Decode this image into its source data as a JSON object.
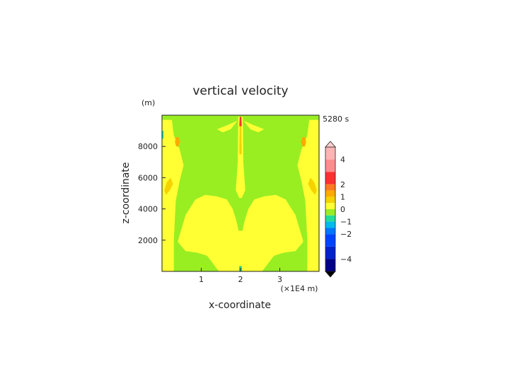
{
  "chart_data": {
    "type": "heatmap",
    "title": "vertical velocity",
    "time_label": "5280 s",
    "xlabel": "x-coordinate",
    "ylabel": "z-coordinate",
    "x_unit": "(×1E4 m)",
    "y_unit": "(m)",
    "xlim": [
      0,
      4
    ],
    "ylim": [
      0,
      10000
    ],
    "x_ticks": [
      1,
      2,
      3
    ],
    "x_tick_labels": [
      "1",
      "2",
      "3"
    ],
    "y_ticks": [
      2000,
      4000,
      6000,
      8000
    ],
    "y_tick_labels": [
      "2000",
      "4000",
      "6000",
      "8000"
    ],
    "colorbar": {
      "min": -5,
      "max": 5,
      "tick_values": [
        4,
        2,
        1,
        0,
        -1,
        -2,
        -4
      ],
      "tick_labels": [
        "4",
        "2",
        "1",
        "0",
        "−1",
        "−2",
        "−4"
      ],
      "bands": [
        {
          "from": 4,
          "to": 5,
          "color": "#ffb4b4"
        },
        {
          "from": 3,
          "to": 4,
          "color": "#ff8c8c"
        },
        {
          "from": 2,
          "to": 3,
          "color": "#ff3030"
        },
        {
          "from": 1.5,
          "to": 2,
          "color": "#ff7a1e"
        },
        {
          "from": 1,
          "to": 1.5,
          "color": "#ffaa00"
        },
        {
          "from": 0.5,
          "to": 1,
          "color": "#f5d200"
        },
        {
          "from": 0,
          "to": 0.5,
          "color": "#ffff33"
        },
        {
          "from": -0.5,
          "to": 0,
          "color": "#99ee22"
        },
        {
          "from": -1,
          "to": -0.5,
          "color": "#22dd99"
        },
        {
          "from": -1.5,
          "to": -1,
          "color": "#00bbee"
        },
        {
          "from": -2,
          "to": -1.5,
          "color": "#0077ff"
        },
        {
          "from": -3,
          "to": -2,
          "color": "#0044ff"
        },
        {
          "from": -4,
          "to": -3,
          "color": "#0022cc"
        },
        {
          "from": -5,
          "to": -4,
          "color": "#000088"
        }
      ],
      "over_color": "#ffd0d0",
      "under_color": "#000000"
    },
    "background_color": "#99ee22",
    "regions": [
      {
        "level": "0 to 0.5",
        "color": "#ffff33",
        "points": [
          [
            0.0,
            0
          ],
          [
            0.3,
            0
          ],
          [
            0.3,
            2000
          ],
          [
            0.35,
            4500
          ],
          [
            0.45,
            5800
          ],
          [
            0.55,
            6800
          ],
          [
            0.45,
            7800
          ],
          [
            0.3,
            8700
          ],
          [
            0.25,
            9700
          ],
          [
            0.0,
            9700
          ]
        ]
      },
      {
        "level": "0 to 0.5",
        "color": "#ffff33",
        "points": [
          [
            4.0,
            0
          ],
          [
            3.7,
            0
          ],
          [
            3.7,
            2000
          ],
          [
            3.65,
            4500
          ],
          [
            3.55,
            5800
          ],
          [
            3.45,
            6800
          ],
          [
            3.55,
            7800
          ],
          [
            3.7,
            8700
          ],
          [
            3.75,
            9700
          ],
          [
            4.0,
            9700
          ]
        ]
      },
      {
        "level": "0 to 0.5",
        "color": "#ffff33",
        "points": [
          [
            0.4,
            1900
          ],
          [
            0.6,
            3600
          ],
          [
            0.85,
            4600
          ],
          [
            1.1,
            4900
          ],
          [
            1.4,
            4800
          ],
          [
            1.65,
            4600
          ],
          [
            1.8,
            4000
          ],
          [
            1.9,
            3200
          ],
          [
            1.95,
            2600
          ],
          [
            2.05,
            2600
          ],
          [
            2.1,
            3200
          ],
          [
            2.2,
            4000
          ],
          [
            2.35,
            4600
          ],
          [
            2.6,
            4800
          ],
          [
            2.9,
            4900
          ],
          [
            3.15,
            4600
          ],
          [
            3.4,
            3600
          ],
          [
            3.6,
            1900
          ],
          [
            3.4,
            1300
          ],
          [
            3.1,
            1200
          ],
          [
            2.85,
            1000
          ],
          [
            2.55,
            0
          ],
          [
            1.45,
            0
          ],
          [
            1.15,
            1000
          ],
          [
            0.9,
            1200
          ],
          [
            0.6,
            1300
          ]
        ]
      },
      {
        "level": "0 to 0.5",
        "color": "#ffff33",
        "points": [
          [
            1.88,
            5200
          ],
          [
            1.93,
            7000
          ],
          [
            1.94,
            9900
          ],
          [
            2.06,
            9900
          ],
          [
            2.07,
            7000
          ],
          [
            2.12,
            5200
          ],
          [
            2.03,
            4700
          ],
          [
            1.97,
            4700
          ]
        ]
      },
      {
        "level": "0 to 0.5",
        "color": "#ffff33",
        "points": [
          [
            1.4,
            9100
          ],
          [
            1.7,
            9400
          ],
          [
            1.92,
            9650
          ],
          [
            1.75,
            9100
          ],
          [
            1.55,
            8900
          ]
        ]
      },
      {
        "level": "0 to 0.5",
        "color": "#ffff33",
        "points": [
          [
            2.6,
            9100
          ],
          [
            2.3,
            9400
          ],
          [
            2.08,
            9650
          ],
          [
            2.25,
            9100
          ],
          [
            2.45,
            8900
          ]
        ]
      },
      {
        "level": "0.5 to 1",
        "color": "#f5d200",
        "points": [
          [
            1.97,
            7500
          ],
          [
            1.98,
            9500
          ],
          [
            2.02,
            9500
          ],
          [
            2.03,
            7500
          ]
        ]
      },
      {
        "level": "2 to 3",
        "color": "#ff3030",
        "points": [
          [
            1.97,
            9300
          ],
          [
            1.98,
            9900
          ],
          [
            2.02,
            9900
          ],
          [
            2.03,
            9300
          ]
        ]
      },
      {
        "level": "1 to 1.5",
        "color": "#ffaa00",
        "points": [
          [
            0.36,
            8000
          ],
          [
            0.42,
            8000
          ],
          [
            0.46,
            8300
          ],
          [
            0.42,
            8600
          ],
          [
            0.36,
            8600
          ],
          [
            0.33,
            8300
          ]
        ]
      },
      {
        "level": "1 to 1.5",
        "color": "#ffaa00",
        "points": [
          [
            3.58,
            8000
          ],
          [
            3.64,
            8000
          ],
          [
            3.67,
            8300
          ],
          [
            3.64,
            8600
          ],
          [
            3.58,
            8600
          ],
          [
            3.54,
            8300
          ]
        ]
      },
      {
        "level": "0.5 to 1",
        "color": "#f5d200",
        "points": [
          [
            0.1,
            4900
          ],
          [
            0.2,
            5200
          ],
          [
            0.28,
            5600
          ],
          [
            0.22,
            6000
          ],
          [
            0.12,
            5700
          ],
          [
            0.06,
            5200
          ]
        ]
      },
      {
        "level": "0.5 to 1",
        "color": "#f5d200",
        "points": [
          [
            3.9,
            4900
          ],
          [
            3.8,
            5200
          ],
          [
            3.72,
            5600
          ],
          [
            3.78,
            6000
          ],
          [
            3.88,
            5700
          ],
          [
            3.94,
            5200
          ]
        ]
      },
      {
        "level": "-1 to -0.5",
        "color": "#22dd99",
        "points": [
          [
            0.0,
            8500
          ],
          [
            0.04,
            8500
          ],
          [
            0.04,
            9000
          ],
          [
            0.0,
            9000
          ]
        ]
      },
      {
        "level": "-1 to -0.5",
        "color": "#22dd99",
        "points": [
          [
            1.96,
            0
          ],
          [
            2.04,
            0
          ],
          [
            2.03,
            350
          ],
          [
            1.97,
            350
          ]
        ]
      }
    ]
  }
}
